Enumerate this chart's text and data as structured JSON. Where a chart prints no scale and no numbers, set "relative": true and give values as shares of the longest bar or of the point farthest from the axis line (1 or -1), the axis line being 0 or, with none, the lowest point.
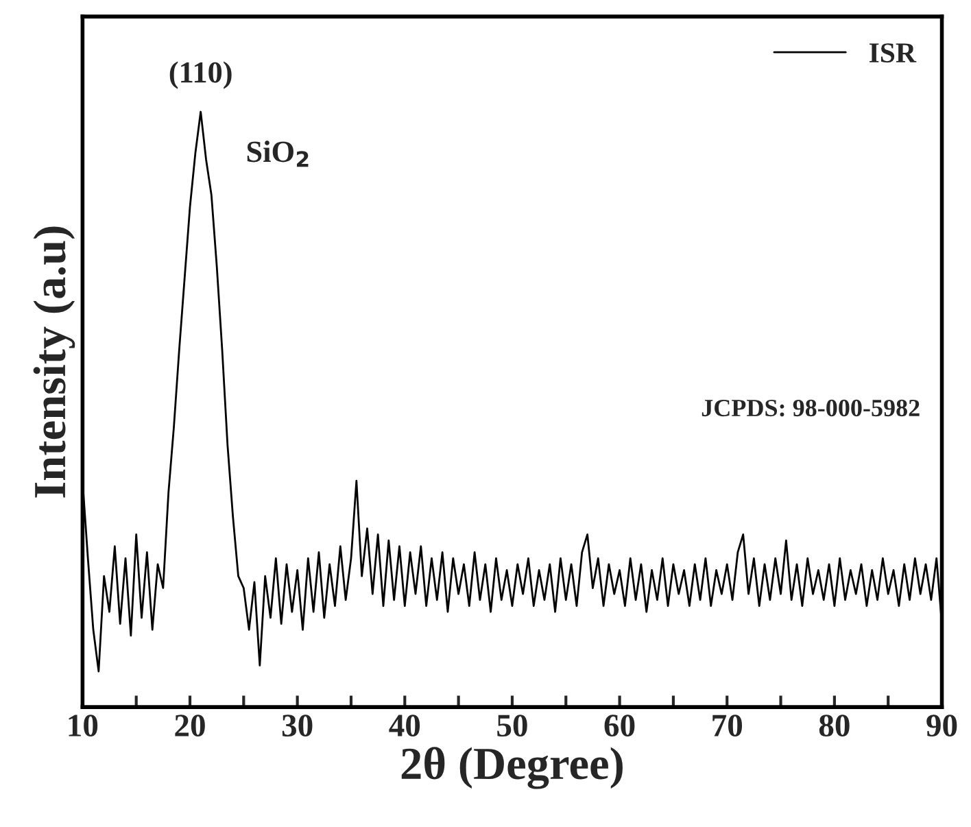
{
  "chart_data": {
    "type": "line",
    "relative": true,
    "xlabel": "2θ (Degree)",
    "ylabel": "Intensity (a.u)",
    "x": [
      10,
      10.5,
      11,
      11.5,
      12,
      12.5,
      13,
      13.5,
      14,
      14.5,
      15,
      15.5,
      16,
      16.5,
      17,
      17.5,
      18,
      18.5,
      19,
      19.5,
      20,
      20.5,
      21,
      21.5,
      22,
      22.5,
      23,
      23.5,
      24,
      24.5,
      25,
      25.5,
      26,
      26.5,
      27,
      27.5,
      28,
      28.5,
      29,
      29.5,
      30,
      30.5,
      31,
      31.5,
      32,
      32.5,
      33,
      33.5,
      34,
      34.5,
      35,
      35.5,
      36,
      36.5,
      37,
      37.5,
      38,
      38.5,
      39,
      39.5,
      40,
      40.5,
      41,
      41.5,
      42,
      42.5,
      43,
      43.5,
      44,
      44.5,
      45,
      45.5,
      46,
      46.5,
      47,
      47.5,
      48,
      48.5,
      49,
      49.5,
      50,
      50.5,
      51,
      51.5,
      52,
      52.5,
      53,
      53.5,
      54,
      54.5,
      55,
      55.5,
      56,
      56.5,
      57,
      57.5,
      58,
      58.5,
      59,
      59.5,
      60,
      60.5,
      61,
      61.5,
      62,
      62.5,
      63,
      63.5,
      64,
      64.5,
      65,
      65.5,
      66,
      66.5,
      67,
      67.5,
      68,
      68.5,
      69,
      69.5,
      70,
      70.5,
      71,
      71.5,
      72,
      72.5,
      73,
      73.5,
      74,
      74.5,
      75,
      75.5,
      76,
      76.5,
      77,
      77.5,
      78,
      78.5,
      79,
      79.5,
      80,
      80.5,
      81,
      81.5,
      82,
      82.5,
      83,
      83.5,
      84,
      84.5,
      85,
      85.5,
      86,
      86.5,
      87,
      87.5,
      88,
      88.5,
      89,
      89.5,
      90
    ],
    "series": [
      {
        "name": "ISR",
        "color": "#000000",
        "values": [
          0.38,
          0.25,
          0.13,
          0.06,
          0.22,
          0.16,
          0.27,
          0.14,
          0.25,
          0.12,
          0.29,
          0.15,
          0.26,
          0.13,
          0.24,
          0.2,
          0.36,
          0.47,
          0.6,
          0.72,
          0.84,
          0.93,
          1.0,
          0.92,
          0.86,
          0.74,
          0.6,
          0.44,
          0.32,
          0.22,
          0.2,
          0.13,
          0.21,
          0.07,
          0.22,
          0.15,
          0.25,
          0.14,
          0.24,
          0.16,
          0.23,
          0.13,
          0.25,
          0.16,
          0.26,
          0.15,
          0.24,
          0.17,
          0.27,
          0.18,
          0.25,
          0.38,
          0.22,
          0.3,
          0.19,
          0.29,
          0.17,
          0.28,
          0.18,
          0.27,
          0.17,
          0.26,
          0.19,
          0.27,
          0.17,
          0.25,
          0.18,
          0.26,
          0.16,
          0.25,
          0.19,
          0.24,
          0.17,
          0.26,
          0.18,
          0.24,
          0.16,
          0.25,
          0.18,
          0.23,
          0.17,
          0.24,
          0.19,
          0.25,
          0.17,
          0.23,
          0.18,
          0.24,
          0.16,
          0.25,
          0.18,
          0.24,
          0.17,
          0.26,
          0.29,
          0.2,
          0.25,
          0.17,
          0.24,
          0.19,
          0.23,
          0.17,
          0.25,
          0.18,
          0.24,
          0.16,
          0.23,
          0.18,
          0.25,
          0.17,
          0.24,
          0.19,
          0.23,
          0.17,
          0.24,
          0.18,
          0.25,
          0.17,
          0.23,
          0.19,
          0.24,
          0.18,
          0.26,
          0.29,
          0.19,
          0.25,
          0.17,
          0.24,
          0.18,
          0.25,
          0.19,
          0.28,
          0.18,
          0.24,
          0.17,
          0.25,
          0.19,
          0.23,
          0.18,
          0.24,
          0.17,
          0.25,
          0.18,
          0.23,
          0.19,
          0.24,
          0.17,
          0.23,
          0.18,
          0.25,
          0.19,
          0.23,
          0.17,
          0.24,
          0.18,
          0.25,
          0.19,
          0.24,
          0.18,
          0.25,
          0.14
        ]
      }
    ],
    "xlim": [
      10,
      90
    ],
    "xticks": [
      10,
      {
        "value": 15,
        "label": null
      },
      20,
      {
        "value": 25,
        "label": null
      },
      30,
      {
        "value": 35,
        "label": null
      },
      40,
      {
        "value": 45,
        "label": null
      },
      50,
      {
        "value": 55,
        "label": null
      },
      60,
      {
        "value": 65,
        "label": null
      },
      70,
      {
        "value": 75,
        "label": null
      },
      80,
      {
        "value": 85,
        "label": null
      },
      90
    ],
    "tick_labels": "x",
    "legend": "top right",
    "grid": false,
    "annotations": [
      {
        "text": "(110)",
        "x": 21,
        "y": 1.0
      },
      "SiO$_{2}$",
      "JCPDS: 98-000-5982"
    ]
  }
}
